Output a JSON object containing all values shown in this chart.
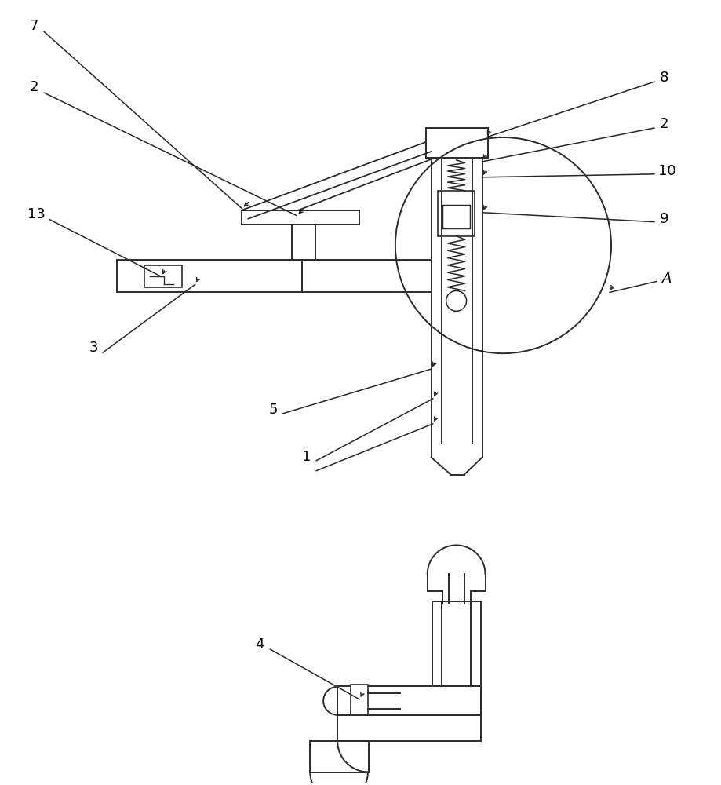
{
  "bg_color": "#ffffff",
  "line_color": "#2a2a2a",
  "lw": 1.4,
  "figsize": [
    9.19,
    10.0
  ],
  "dpi": 100
}
